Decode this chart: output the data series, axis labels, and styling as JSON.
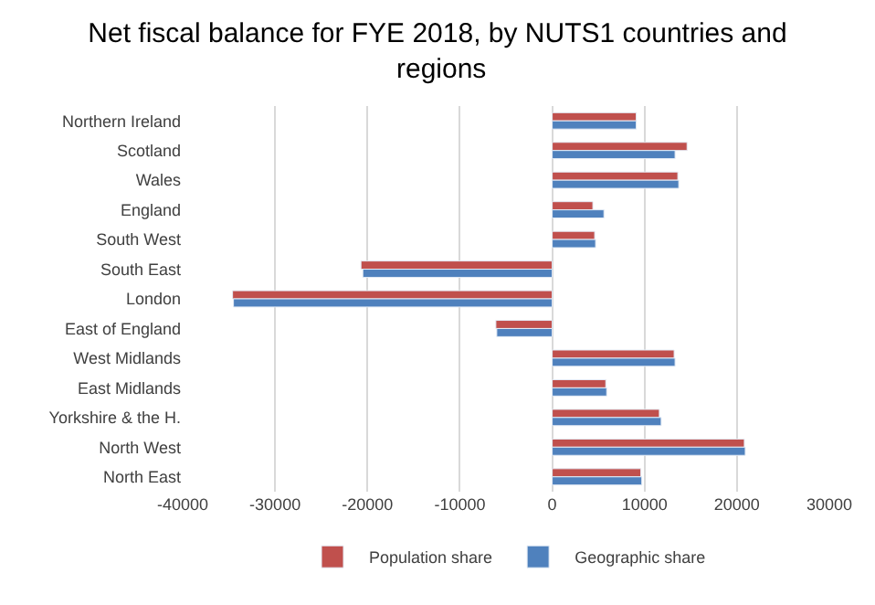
{
  "chart_data": {
    "type": "bar",
    "orientation": "horizontal",
    "title": "Net fiscal balance for FYE 2018, by NUTS1 countries and regions",
    "categories": [
      "Northern Ireland",
      "Scotland",
      "Wales",
      "England",
      "South West",
      "South East",
      "London",
      "East of England",
      "West Midlands",
      "East Midlands",
      "Yorkshire & the H.",
      "North West",
      "North East"
    ],
    "series": [
      {
        "name": "Population share",
        "color": "#c0504d",
        "values": [
          9100,
          14600,
          13600,
          4400,
          4600,
          -20700,
          -34600,
          -6100,
          13200,
          5800,
          11600,
          20800,
          9600
        ]
      },
      {
        "name": "Geographic share",
        "color": "#4f81bd",
        "values": [
          9100,
          13300,
          13700,
          5600,
          4700,
          -20500,
          -34500,
          -6000,
          13300,
          5900,
          11800,
          20900,
          9700
        ]
      }
    ],
    "xlim": [
      -40000,
      30000
    ],
    "xticks": [
      -40000,
      -30000,
      -20000,
      -10000,
      0,
      10000,
      20000,
      30000
    ],
    "grid": "x",
    "legend": "bottom"
  }
}
